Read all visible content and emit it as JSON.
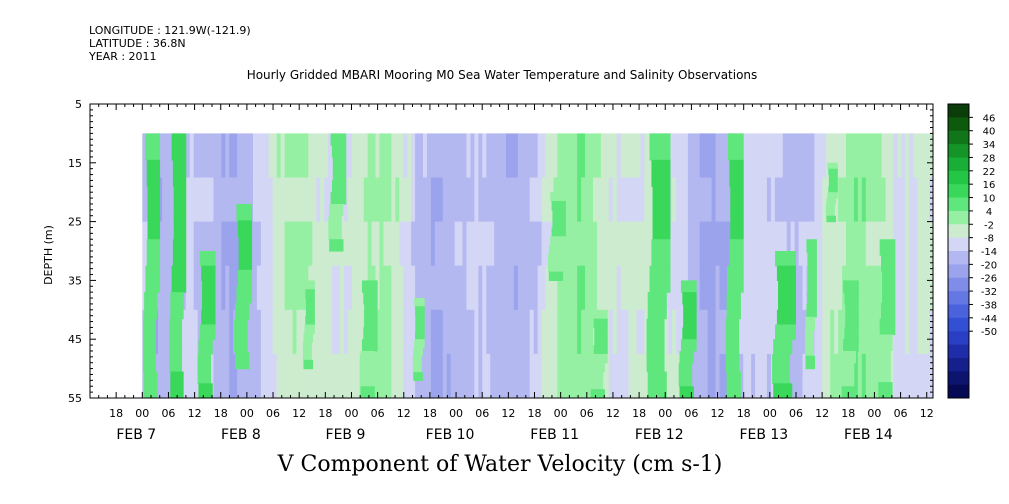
{
  "header": {
    "lines": [
      "LONGITUDE : 121.9W(-121.9)",
      "LATITUDE : 36.8N",
      "YEAR : 2011"
    ]
  },
  "chart_data": {
    "type": "heatmap",
    "title": "Hourly Gridded MBARI Mooring M0 Sea Water Temperature and Salinity Observations",
    "xlabel": "V Component of Water Velocity (cm s-1)",
    "ylabel": "DEPTH (m)",
    "y_ticks": [
      5,
      15,
      25,
      35,
      45,
      55
    ],
    "ylim": [
      5,
      55
    ],
    "y_inverted": true,
    "data_depth_range": [
      10,
      55
    ],
    "x_hour_ticks": [
      "18",
      "00",
      "06",
      "12",
      "18",
      "00",
      "06",
      "12",
      "18",
      "00",
      "06",
      "12",
      "18",
      "00",
      "06",
      "12",
      "18",
      "00",
      "06",
      "12",
      "18",
      "00",
      "06",
      "12",
      "18",
      "00",
      "06",
      "12",
      "18",
      "00",
      "06",
      "12"
    ],
    "x_day_labels": [
      "FEB  7",
      "FEB  8",
      "FEB  9",
      "FEB 10",
      "FEB 11",
      "FEB 12",
      "FEB 13",
      "FEB 14"
    ],
    "colorbar": {
      "labels": [
        "46",
        "40",
        "34",
        "28",
        "22",
        "16",
        "10",
        "4",
        "-2",
        "-8",
        "-14",
        "-20",
        "-26",
        "-32",
        "-38",
        "-44",
        "-50"
      ],
      "colors": [
        "#0b3d0b",
        "#0d5a0d",
        "#11761a",
        "#159427",
        "#19ae36",
        "#24c646",
        "#39d85a",
        "#5fe67c",
        "#96f0a4",
        "#cdeccf",
        "#d4d6f6",
        "#b4b8f0",
        "#9aa3ec",
        "#7f8de8",
        "#6577e2",
        "#4a62dc",
        "#3350d4",
        "#2a3fc4",
        "#1f2ea8",
        "#15208c",
        "#0c1470",
        "#060a55"
      ]
    },
    "bands": [
      {
        "day": 7.03,
        "start": 7.03,
        "end": 7.17,
        "depth_top": 10,
        "depth_bottom": 55,
        "value": 8
      },
      {
        "start": 7.28,
        "end": 7.42,
        "depth_top": 10,
        "depth_bottom": 55,
        "value": 12
      },
      {
        "start": 7.55,
        "end": 7.7,
        "depth_top": 30,
        "depth_bottom": 55,
        "value": 10
      },
      {
        "start": 7.9,
        "end": 8.05,
        "depth_top": 22,
        "depth_bottom": 50,
        "value": 8
      },
      {
        "start": 8.55,
        "end": 8.65,
        "depth_top": 35,
        "depth_bottom": 50,
        "value": 4
      },
      {
        "start": 8.8,
        "end": 8.95,
        "depth_top": 10,
        "depth_bottom": 30,
        "value": 6
      },
      {
        "start": 9.1,
        "end": 9.25,
        "depth_top": 35,
        "depth_bottom": 55,
        "value": 6
      },
      {
        "start": 9.6,
        "end": 9.7,
        "depth_top": 38,
        "depth_bottom": 52,
        "value": 4
      },
      {
        "start": 10.9,
        "end": 11.05,
        "depth_top": 20,
        "depth_bottom": 35,
        "value": 4
      },
      {
        "start": 11.3,
        "end": 11.45,
        "depth_top": 40,
        "depth_bottom": 55,
        "value": 4
      },
      {
        "start": 11.85,
        "end": 12.05,
        "depth_top": 10,
        "depth_bottom": 55,
        "value": 8
      },
      {
        "start": 12.15,
        "end": 12.3,
        "depth_top": 35,
        "depth_bottom": 55,
        "value": 10
      },
      {
        "start": 12.6,
        "end": 12.75,
        "depth_top": 10,
        "depth_bottom": 55,
        "value": 8
      },
      {
        "start": 13.05,
        "end": 13.25,
        "depth_top": 30,
        "depth_bottom": 55,
        "value": 10
      },
      {
        "start": 13.35,
        "end": 13.45,
        "depth_top": 28,
        "depth_bottom": 50,
        "value": 6
      },
      {
        "start": 13.55,
        "end": 13.65,
        "depth_top": 15,
        "depth_bottom": 25,
        "value": 4
      },
      {
        "start": 13.7,
        "end": 13.85,
        "depth_top": 35,
        "depth_bottom": 55,
        "value": 6
      },
      {
        "start": 14.05,
        "end": 14.2,
        "depth_top": 28,
        "depth_bottom": 55,
        "value": 6
      }
    ]
  }
}
